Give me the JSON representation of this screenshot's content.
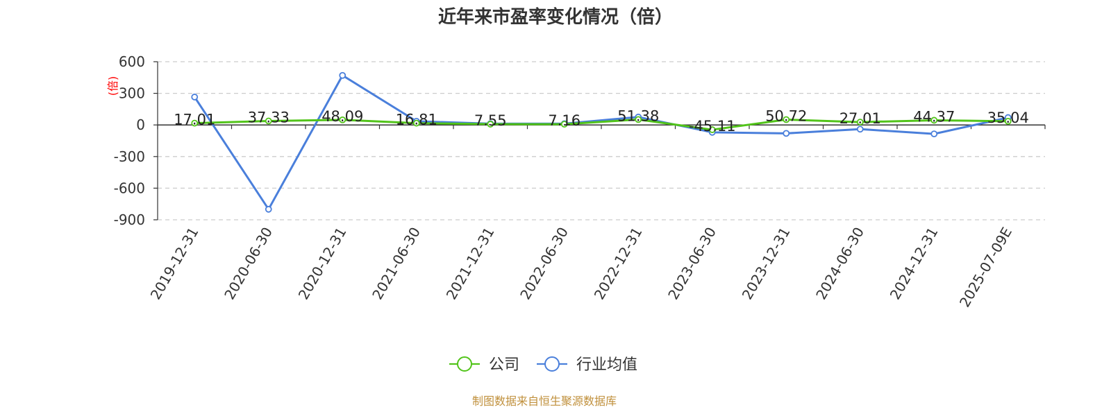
{
  "chart_data": {
    "type": "line",
    "title": "近年来市盈率变化情况（倍）",
    "ylabel": "(倍)",
    "xlabel": "",
    "ylim": [
      -900,
      600
    ],
    "yticks": [
      600,
      300,
      0,
      -300,
      -600,
      -900
    ],
    "ytick_labels": [
      "600",
      "300",
      "0",
      "-300",
      "-600",
      "-900"
    ],
    "grid": true,
    "legend_position": "bottom",
    "categories": [
      "2019-12-31",
      "2020-06-30",
      "2020-12-31",
      "2021-06-30",
      "2021-12-31",
      "2022-06-30",
      "2022-12-31",
      "2023-06-30",
      "2023-12-31",
      "2024-06-30",
      "2024-12-31",
      "2025-07-09E"
    ],
    "series": [
      {
        "name": "公司",
        "color": "#52c41a",
        "values": [
          17.01,
          37.33,
          48.09,
          16.81,
          7.55,
          7.16,
          51.38,
          -45.11,
          50.72,
          27.01,
          44.37,
          35.04
        ],
        "labels": [
          "17.01",
          "37.33",
          "48.09",
          "16.81",
          "7.55",
          "7.16",
          "51.38",
          "-45.11",
          "50.72",
          "27.01",
          "44.37",
          "35.04"
        ]
      },
      {
        "name": "行业均值",
        "color": "#4a7fdb",
        "values": [
          265,
          -800,
          470,
          35,
          12,
          12,
          75,
          -70,
          -80,
          -40,
          -85,
          70
        ]
      }
    ],
    "source": "制图数据来自恒生聚源数据库"
  }
}
